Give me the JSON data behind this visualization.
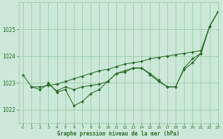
{
  "title": "Graphe pression niveau de la mer (hPa)",
  "bg_color": "#cce8d8",
  "grid_color": "#99ccaa",
  "line_color": "#2d6e2d",
  "marker_color": "#2d6e2d",
  "xlim": [
    -0.5,
    23
  ],
  "ylim": [
    1021.5,
    1026.0
  ],
  "yticks": [
    1022,
    1023,
    1024,
    1025
  ],
  "xticks": [
    0,
    1,
    2,
    3,
    4,
    5,
    6,
    7,
    8,
    9,
    10,
    11,
    12,
    13,
    14,
    15,
    16,
    17,
    18,
    19,
    20,
    21,
    22,
    23
  ],
  "series": [
    {
      "x": [
        0,
        1,
        2,
        3,
        4,
        5,
        6,
        7,
        8,
        9,
        10,
        11,
        12,
        13,
        14,
        15,
        16,
        17,
        18,
        19,
        20,
        21,
        22,
        23
      ],
      "y": [
        1023.3,
        1022.85,
        1022.85,
        1022.9,
        1022.95,
        1023.05,
        1023.15,
        1023.25,
        1023.35,
        1023.45,
        1023.5,
        1023.6,
        1023.7,
        1023.75,
        1023.8,
        1023.9,
        1023.95,
        1024.0,
        1024.05,
        1024.1,
        1024.15,
        1024.2,
        1025.1,
        1025.65
      ]
    },
    {
      "x": [
        1,
        2,
        3,
        4,
        5,
        6,
        7,
        8,
        9,
        10,
        11,
        12,
        13,
        14,
        15,
        16,
        17,
        18,
        19,
        20,
        21,
        22,
        23
      ],
      "y": [
        1022.85,
        1022.75,
        1022.95,
        1022.7,
        1022.85,
        1022.75,
        1022.85,
        1022.9,
        1022.95,
        1023.05,
        1023.35,
        1023.4,
        1023.55,
        1023.55,
        1023.35,
        1023.1,
        1022.85,
        1022.85,
        1023.5,
        1023.75,
        1024.1,
        1025.1,
        1025.65
      ]
    },
    {
      "x": [
        3,
        4,
        5,
        6,
        7,
        8,
        9,
        10,
        11,
        12,
        13,
        14,
        15,
        16,
        17,
        18,
        19,
        20,
        21,
        22,
        23
      ],
      "y": [
        1023.0,
        1022.65,
        1022.75,
        1022.15,
        1022.3,
        1022.6,
        1022.75,
        1023.05,
        1023.35,
        1023.45,
        1023.55,
        1023.55,
        1023.3,
        1023.05,
        1022.85,
        1022.85,
        1023.55,
        1023.9,
        1024.1,
        1025.1,
        1025.65
      ]
    }
  ]
}
